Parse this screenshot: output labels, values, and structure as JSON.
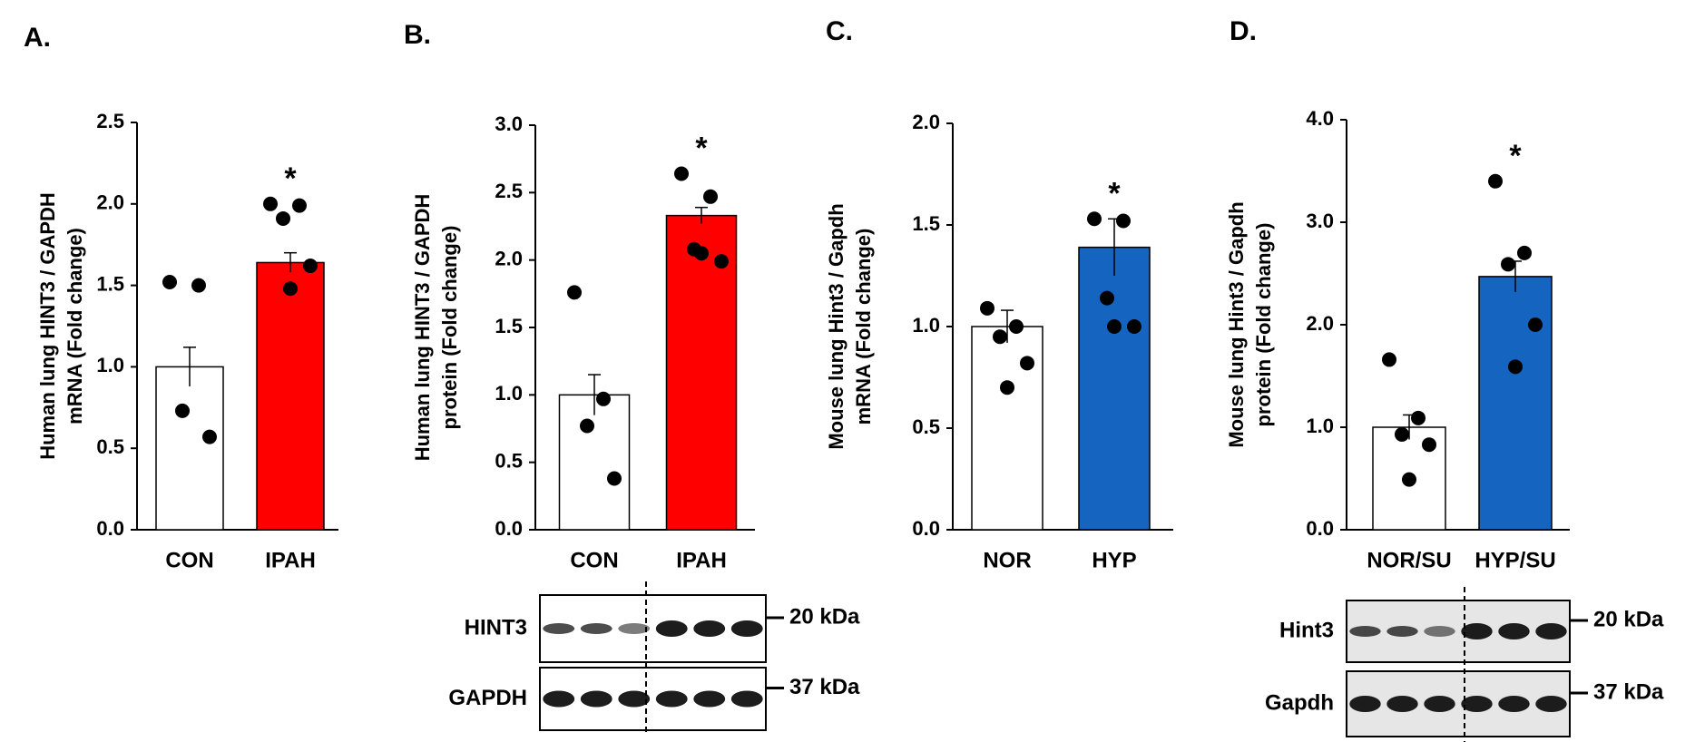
{
  "chart_data": [
    {
      "type": "bar",
      "panel": "A.",
      "ylabel": [
        "Human lung HINT3 / GAPDH",
        "mRNA (Fold change)"
      ],
      "categories": [
        "CON",
        "IPAH"
      ],
      "values": [
        1.0,
        1.64
      ],
      "errors": [
        0.12,
        0.06
      ],
      "points": [
        [
          1.52,
          1.5,
          0.73,
          0.57
        ],
        [
          2.0,
          1.99,
          1.91,
          1.62,
          1.48
        ]
      ],
      "colors": [
        "#ffffff",
        "#ff0000"
      ],
      "annotation": "*",
      "ylim": [
        0,
        2.5
      ],
      "yticks": [
        {
          "value": 0,
          "label": "0.0"
        },
        {
          "value": 0.5,
          "label": "0.5"
        },
        {
          "value": 1,
          "label": "1.0"
        },
        {
          "value": 1.5,
          "label": "1.5"
        },
        {
          "value": 2,
          "label": "2.0"
        },
        {
          "value": 2.5,
          "label": "2.5"
        }
      ]
    },
    {
      "type": "bar",
      "panel": "B.",
      "ylabel": [
        "Human lung HINT3 / GAPDH",
        "protein (Fold change)"
      ],
      "categories": [
        "CON",
        "IPAH"
      ],
      "values": [
        1.0,
        2.33
      ],
      "errors": [
        0.15,
        0.06
      ],
      "points": [
        [
          1.76,
          0.97,
          0.77,
          0.38
        ],
        [
          2.64,
          2.47,
          2.08,
          1.99,
          2.05
        ]
      ],
      "colors": [
        "#ffffff",
        "#ff0000"
      ],
      "annotation": "*",
      "ylim": [
        0,
        3
      ],
      "yticks": [
        {
          "value": 0,
          "label": "0.0"
        },
        {
          "value": 0.5,
          "label": "0.5"
        },
        {
          "value": 1,
          "label": "1.0"
        },
        {
          "value": 1.5,
          "label": "1.5"
        },
        {
          "value": 2,
          "label": "2.0"
        },
        {
          "value": 2.5,
          "label": "2.5"
        },
        {
          "value": 3,
          "label": "3.0"
        }
      ],
      "blots": [
        {
          "name": "HINT3",
          "size": "20 kDa"
        },
        {
          "name": "GAPDH",
          "size": "37 kDa"
        }
      ]
    },
    {
      "type": "bar",
      "panel": "C.",
      "ylabel": [
        "Mouse lung Hint3 / Gapdh",
        "mRNA (Fold change)"
      ],
      "categories": [
        "NOR",
        "HYP"
      ],
      "values": [
        1.0,
        1.39
      ],
      "errors": [
        0.08,
        0.14
      ],
      "points": [
        [
          1.09,
          1.0,
          0.95,
          0.82,
          0.7
        ],
        [
          1.53,
          1.52,
          1.14,
          1.0,
          1.0
        ]
      ],
      "colors": [
        "#ffffff",
        "#1565c0"
      ],
      "annotation": "*",
      "ylim": [
        0,
        2
      ],
      "yticks": [
        {
          "value": 0,
          "label": "0.0"
        },
        {
          "value": 0.5,
          "label": "0.5"
        },
        {
          "value": 1,
          "label": "1.0"
        },
        {
          "value": 1.5,
          "label": "1.5"
        },
        {
          "value": 2,
          "label": "2.0"
        }
      ]
    },
    {
      "type": "bar",
      "panel": "D.",
      "ylabel": [
        "Mouse lung Hint3 / Gapdh",
        "protein (Fold change)"
      ],
      "categories": [
        "NOR/SU",
        "HYP/SU"
      ],
      "values": [
        1.0,
        2.47
      ],
      "errors": [
        0.12,
        0.15
      ],
      "points": [
        [
          1.66,
          1.09,
          0.93,
          0.83,
          0.49
        ],
        [
          3.4,
          2.7,
          2.59,
          2.0,
          1.59
        ]
      ],
      "colors": [
        "#ffffff",
        "#1565c0"
      ],
      "annotation": "*",
      "ylim": [
        0,
        4
      ],
      "yticks": [
        {
          "value": 0,
          "label": "0.0"
        },
        {
          "value": 1,
          "label": "1.0"
        },
        {
          "value": 2,
          "label": "2.0"
        },
        {
          "value": 3,
          "label": "3.0"
        },
        {
          "value": 4,
          "label": "4.0"
        }
      ],
      "blots": [
        {
          "name": "Hint3",
          "size": "20 kDa"
        },
        {
          "name": "Gapdh",
          "size": "37 kDa"
        }
      ]
    }
  ]
}
